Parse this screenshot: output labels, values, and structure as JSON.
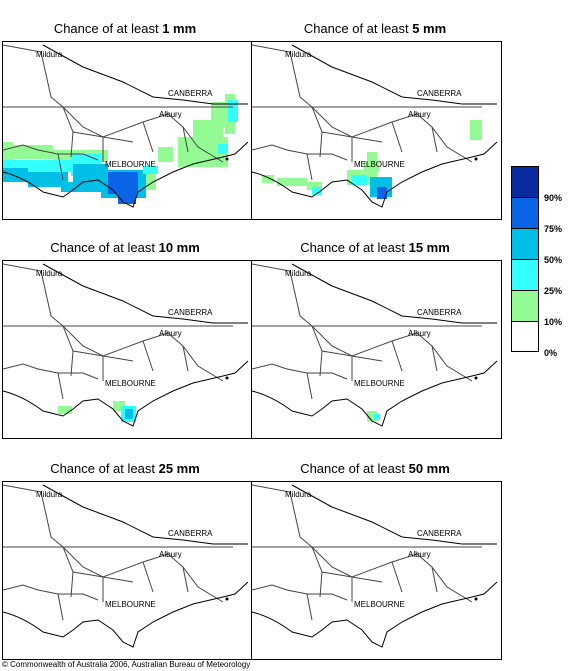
{
  "panels": [
    {
      "prefix": "Chance of at least ",
      "amount": "1 mm"
    },
    {
      "prefix": "Chance of at least ",
      "amount": "5 mm"
    },
    {
      "prefix": "Chance of at least ",
      "amount": "10 mm"
    },
    {
      "prefix": "Chance of at least ",
      "amount": "15 mm"
    },
    {
      "prefix": "Chance of at least ",
      "amount": "25 mm"
    },
    {
      "prefix": "Chance of at least ",
      "amount": "50 mm"
    }
  ],
  "places": {
    "mildura": "Mildura",
    "canberra": "CANBERRA",
    "albury": "Albury",
    "melbourne": "MELBOURNE"
  },
  "legend": {
    "labels": [
      "90%",
      "75%",
      "50%",
      "25%",
      "10%",
      "0%"
    ],
    "colors": [
      "#0a2c9e",
      "#0a64e6",
      "#00bfe6",
      "#33ffff",
      "#94fa94",
      "#ffffff"
    ]
  },
  "copyright": "© Commonwealth of Australia 2006, Australian Bureau of Meteorology"
}
